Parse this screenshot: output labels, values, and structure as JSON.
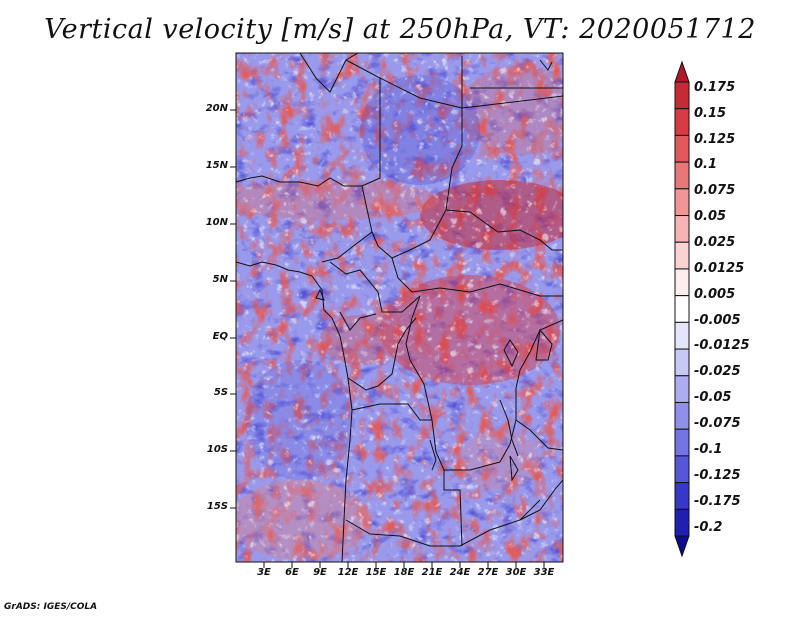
{
  "title": "Vertical velocity [m/s] at 250hPa, VT: 2020051712",
  "credit": "GrADS: IGES/COLA",
  "map": {
    "lat_labels": [
      "20N",
      "15N",
      "10N",
      "5N",
      "EQ",
      "5S",
      "10S",
      "15S"
    ],
    "lon_labels": [
      "3E",
      "6E",
      "9E",
      "12E",
      "15E",
      "18E",
      "21E",
      "24E",
      "27E",
      "30E",
      "33E"
    ]
  },
  "colorbar": {
    "labels": [
      "0.175",
      "0.15",
      "0.125",
      "0.1",
      "0.075",
      "0.05",
      "0.025",
      "0.0125",
      "0.005",
      "-0.005",
      "-0.0125",
      "-0.025",
      "-0.05",
      "-0.075",
      "-0.1",
      "-0.125",
      "-0.175",
      "-0.2"
    ],
    "colors": [
      "#b2182b",
      "#c62a35",
      "#d73c45",
      "#e05a5c",
      "#e87878",
      "#f09696",
      "#f6b4b4",
      "#fbd2d2",
      "#fdeded",
      "#ffffff",
      "#e4e4fa",
      "#c8c8f5",
      "#acacf0",
      "#9090ea",
      "#7474e2",
      "#5656d8",
      "#3838c8",
      "#2020b0",
      "#0c0c8c"
    ]
  },
  "chart_data": {
    "type": "heatmap",
    "title": "Vertical velocity [m/s] at 250hPa, VT: 2020051712",
    "variable": "Vertical velocity",
    "units": "m/s",
    "level": "250hPa",
    "valid_time": "2020051712",
    "x_ticks": [
      "3E",
      "6E",
      "9E",
      "12E",
      "15E",
      "18E",
      "21E",
      "24E",
      "27E",
      "30E",
      "33E"
    ],
    "y_ticks": [
      "20N",
      "15N",
      "10N",
      "5N",
      "EQ",
      "5S",
      "10S",
      "15S"
    ],
    "color_levels": [
      -0.2,
      -0.175,
      -0.125,
      -0.1,
      -0.075,
      -0.05,
      -0.025,
      -0.0125,
      -0.005,
      0.005,
      0.0125,
      0.025,
      0.05,
      0.075,
      0.1,
      0.125,
      0.15,
      0.175
    ]
  }
}
